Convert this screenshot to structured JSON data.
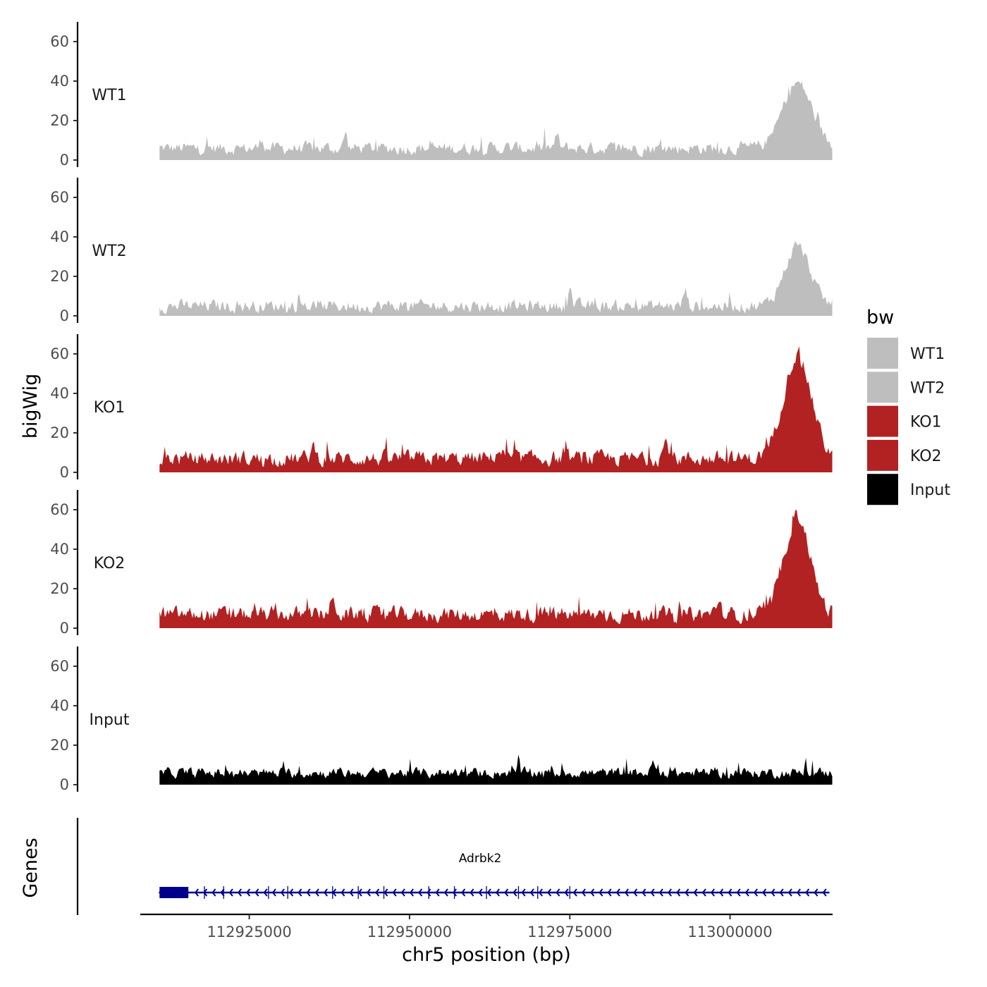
{
  "chart_data": {
    "type": "area",
    "y_axis_title": "bigWig",
    "gene_axis_title": "Genes",
    "x_axis_title": "chr5 position (bp)",
    "x_range": [
      112908000,
      113016000
    ],
    "x_ticks": [
      112925000,
      112950000,
      112975000,
      113000000
    ],
    "x_tick_labels": [
      "112925000",
      "112950000",
      "112975000",
      "113000000"
    ],
    "y_range": [
      0,
      70
    ],
    "y_ticks": [
      0,
      20,
      40,
      60
    ],
    "y_tick_labels": [
      "0",
      "20",
      "40",
      "60"
    ],
    "region": [
      112911000,
      113018000
    ],
    "series": [
      {
        "name": "WT1",
        "color": "#bebebe",
        "base": 6,
        "noise": 5,
        "peaks": [
          [
            113010500,
            33,
            2300
          ],
          [
            112940000,
            8,
            250
          ],
          [
            112927000,
            5,
            300
          ],
          [
            112973000,
            6,
            300
          ]
        ]
      },
      {
        "name": "WT2",
        "color": "#bebebe",
        "base": 5,
        "noise": 5,
        "peaks": [
          [
            113010500,
            30,
            2000
          ],
          [
            112975000,
            12,
            250
          ],
          [
            112993000,
            8,
            300
          ]
        ]
      },
      {
        "name": "KO1",
        "color": "#b22222",
        "base": 7,
        "noise": 6,
        "peaks": [
          [
            113010500,
            52,
            2200
          ],
          [
            112935000,
            6,
            400
          ],
          [
            112964000,
            4,
            600
          ],
          [
            112990000,
            8,
            500
          ]
        ]
      },
      {
        "name": "KO2",
        "color": "#b22222",
        "base": 7,
        "noise": 6,
        "peaks": [
          [
            113010500,
            50,
            2000
          ],
          [
            112938000,
            6,
            500
          ],
          [
            112998000,
            6,
            400
          ]
        ]
      },
      {
        "name": "Input",
        "color": "#000000",
        "base": 6,
        "noise": 4,
        "peaks": [
          [
            112967000,
            8,
            150
          ],
          [
            112988000,
            6,
            250
          ]
        ]
      }
    ],
    "legend_title": "bw",
    "legend": [
      {
        "label": "WT1",
        "color": "#bebebe"
      },
      {
        "label": "WT2",
        "color": "#bebebe"
      },
      {
        "label": "KO1",
        "color": "#b22222"
      },
      {
        "label": "KO2",
        "color": "#b22222"
      },
      {
        "label": "Input",
        "color": "#000000"
      }
    ],
    "gene": {
      "name": "Adrbk2",
      "start": 112911000,
      "end": 113015500,
      "strand": "-",
      "color": "#00008b",
      "exon_block_end": 112915500
    }
  }
}
